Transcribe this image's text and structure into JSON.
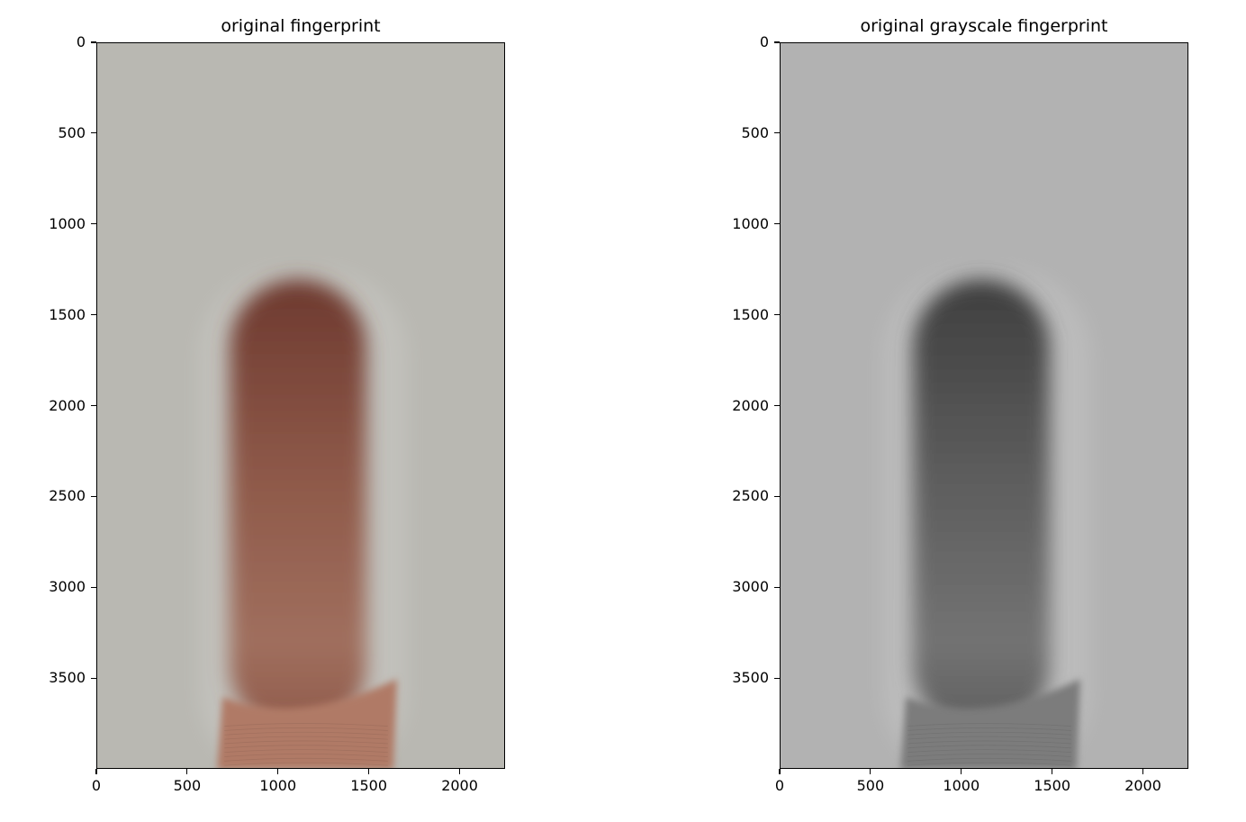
{
  "chart_data": [
    {
      "type": "image",
      "title": "original fingerprint",
      "colormap": "rgb",
      "image_width": 2250,
      "image_height": 4000,
      "xlim": [
        0,
        2250
      ],
      "ylim": [
        4000,
        0
      ],
      "xticks": [
        0,
        500,
        1000,
        1500,
        2000
      ],
      "yticks": [
        0,
        500,
        1000,
        1500,
        2000,
        2500,
        3000,
        3500
      ],
      "xtick_labels": [
        "0",
        "500",
        "1000",
        "1500",
        "2000"
      ],
      "ytick_labels": [
        "0",
        "500",
        "1000",
        "1500",
        "2000",
        "2500",
        "3000",
        "3500"
      ],
      "colors": {
        "background": "#b9b8b2",
        "finger_top": "#6e3a30",
        "finger_mid": "#8f5a4a",
        "finger_base": "#a06f5e",
        "skin_lower": "#b07a66"
      }
    },
    {
      "type": "image",
      "title": "original grayscale fingerprint",
      "colormap": "gray",
      "image_width": 2250,
      "image_height": 4000,
      "xlim": [
        0,
        2250
      ],
      "ylim": [
        4000,
        0
      ],
      "xticks": [
        0,
        500,
        1000,
        1500,
        2000
      ],
      "yticks": [
        0,
        500,
        1000,
        1500,
        2000,
        2500,
        3000,
        3500
      ],
      "xtick_labels": [
        "0",
        "500",
        "1000",
        "1500",
        "2000"
      ],
      "ytick_labels": [
        "0",
        "500",
        "1000",
        "1500",
        "2000",
        "2500",
        "3000",
        "3500"
      ],
      "colors": {
        "background": "#b2b2b2",
        "finger_top": "#3f3f3f",
        "finger_mid": "#5e5e5e",
        "finger_base": "#737373",
        "skin_lower": "#7c7c7c"
      }
    }
  ]
}
